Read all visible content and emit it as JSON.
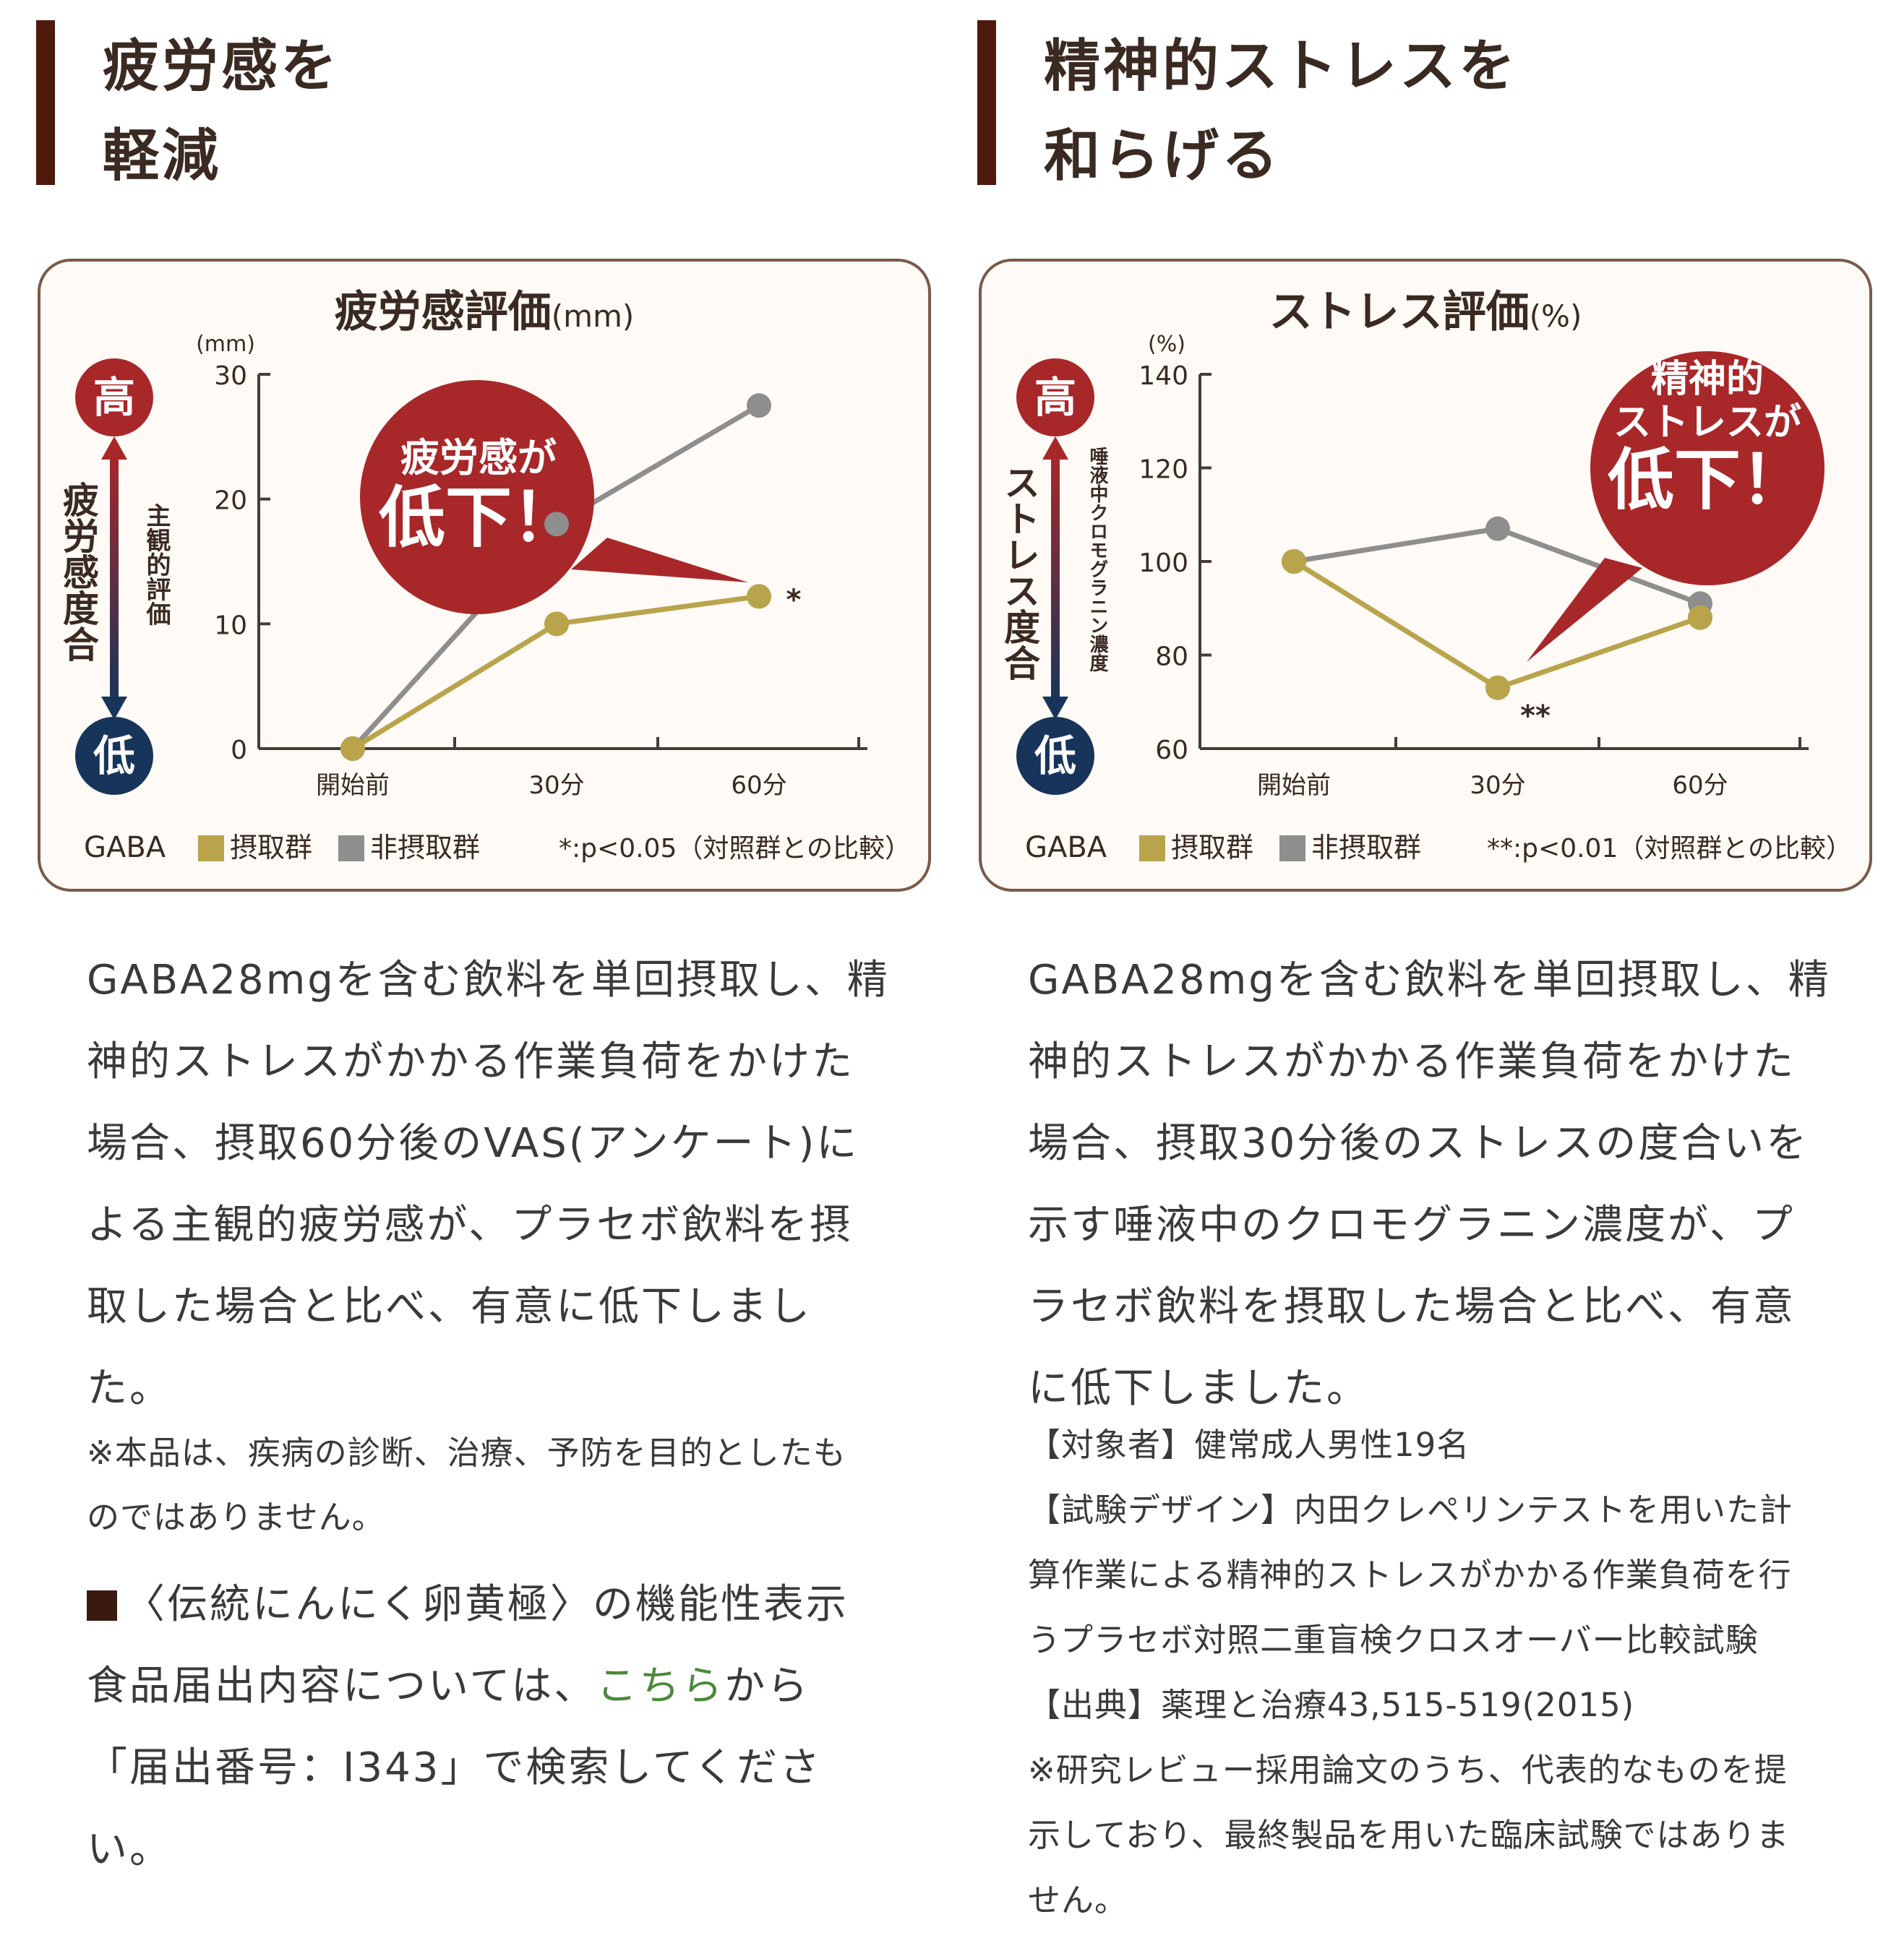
{
  "left": {
    "heading": "疲労感を\n軽減",
    "body": "GABA28mgを含む飲料を単回摂取し、精\n神的ストレスがかかる作業負荷をかけた\n場合、摂取60分後のVAS(アンケート)に\nよる主観的疲労感が、プラセボ飲料を摂\n取した場合と比べ、有意に低下しまし\nた。",
    "note": "※本品は、疾病の診断、治療、予防を目的としたも\nのではありません。",
    "notice": {
      "line1": "〈伝統にんにく卵黄極〉の機能性表示",
      "line2_pre": "食品届出内容については、",
      "link": "こちら",
      "line2_post": "から",
      "line3": "「届出番号：I343」で検索してくださ",
      "line4": "い。"
    }
  },
  "right": {
    "heading": "精神的ストレスを\n和らげる",
    "body": "GABA28mgを含む飲料を単回摂取し、精\n神的ストレスがかかる作業負荷をかけた\n場合、摂取30分後のストレスの度合いを\n示す唾液中のクロモグラニン濃度が、プ\nラセボ飲料を摂取した場合と比べ、有意\nに低下しました。",
    "refs": [
      "【対象者】健常成人男性19名",
      "【試験デザイン】内田クレペリンテストを用いた計\n算作業による精神的ストレスがかかる作業負荷を行\nうプラセボ対照二重盲検クロスオーバー比較試験",
      "【出典】薬理と治療43,515-519(2015)",
      "※研究レビュー採用論文のうち、代表的なものを提\n示しており、最終製品を用いた臨床試験ではありま\nせん。"
    ]
  },
  "colors": {
    "intake": "#b9a44c",
    "nonintake": "#8e8e8e",
    "accent": "#a8282a",
    "navy": "#17355a",
    "frame": "#7a5a4a",
    "heading_bar": "#4e1a0c"
  },
  "chart_data": [
    {
      "type": "line",
      "title": "疲労感評価",
      "title_unit": "(mm)",
      "unit_label": "(mm)",
      "categories": [
        "開始前",
        "30分",
        "60分"
      ],
      "ylim": [
        0,
        30
      ],
      "yticks": [
        0,
        10,
        20,
        30
      ],
      "series": [
        {
          "name": "非摂取群",
          "values": [
            0,
            18,
            27.5
          ]
        },
        {
          "name": "摂取群",
          "values": [
            0,
            10,
            12.2
          ]
        }
      ],
      "significance": {
        "category_index": 2,
        "mark": "*"
      },
      "scale_axis": {
        "high": "高",
        "low": "低",
        "label_main": "疲労感度合",
        "label_sub": "主観的評価"
      },
      "callout": {
        "line1": "疲労感が",
        "line2": "低下！"
      },
      "legend": {
        "prefix": "GABA",
        "intake": "摂取群",
        "nonintake": "非摂取群",
        "note": "*:p<0.05（対照群との比較）"
      },
      "grid": false
    },
    {
      "type": "line",
      "title": "ストレス評価",
      "title_unit": "(%)",
      "unit_label": "(%)",
      "categories": [
        "開始前",
        "30分",
        "60分"
      ],
      "ylim": [
        60,
        140
      ],
      "yticks": [
        60,
        80,
        100,
        120,
        140
      ],
      "series": [
        {
          "name": "非摂取群",
          "values": [
            100,
            107,
            91
          ]
        },
        {
          "name": "摂取群",
          "values": [
            100,
            73,
            88
          ]
        }
      ],
      "significance": {
        "category_index": 1,
        "mark": "**"
      },
      "scale_axis": {
        "high": "高",
        "low": "低",
        "label_main": "ストレス度合",
        "label_sub": "唾液中クロモグラニン濃度"
      },
      "callout": {
        "line1": "精神的",
        "line1b": "ストレスが",
        "line2": "低下！"
      },
      "legend": {
        "prefix": "GABA",
        "intake": "摂取群",
        "nonintake": "非摂取群",
        "note": "**:p<0.01（対照群との比較）"
      },
      "grid": false
    }
  ]
}
